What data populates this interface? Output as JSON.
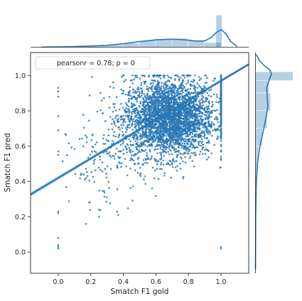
{
  "chart_data": {
    "type": "scatter",
    "xlabel": "Smatch F1 gold",
    "ylabel": "Smatch F1 pred",
    "xlim": [
      -0.17,
      1.17
    ],
    "ylim": [
      -0.12,
      1.13
    ],
    "xticks": [
      0.0,
      0.2,
      0.4,
      0.6,
      0.8,
      1.0
    ],
    "xtick_labels": [
      "0.0",
      "0.2",
      "0.4",
      "0.6",
      "0.8",
      "1.0"
    ],
    "yticks": [
      0.0,
      0.2,
      0.4,
      0.6,
      0.8,
      1.0
    ],
    "ytick_labels": [
      "0.0",
      "0.2",
      "0.4",
      "0.6",
      "0.8",
      "1.0"
    ],
    "legend": "pearsonr = 0.78; p = 0",
    "legend_position": "top-left",
    "color": "#2878b5",
    "regression": {
      "slope": 0.55,
      "intercept": 0.42
    },
    "scatter_clusters": [
      {
        "x_mean": 0.68,
        "y_mean": 0.76,
        "x_sd": 0.14,
        "y_sd": 0.11,
        "count": 3200
      },
      {
        "x_mean": 1.0,
        "y_mean": 0.86,
        "x_sd": 0.0,
        "y_sd": 0.07,
        "count": 260
      },
      {
        "x_mean": 0.3,
        "y_mean": 0.5,
        "x_sd": 0.12,
        "y_sd": 0.12,
        "count": 150
      }
    ],
    "outlier_points": [
      {
        "x": 0.0,
        "y": 0.93
      },
      {
        "x": 0.0,
        "y": 0.91
      },
      {
        "x": 0.0,
        "y": 0.88
      },
      {
        "x": 0.0,
        "y": 0.77
      },
      {
        "x": 0.0,
        "y": 0.69
      },
      {
        "x": 0.0,
        "y": 0.57
      },
      {
        "x": 0.0,
        "y": 0.55
      },
      {
        "x": 0.0,
        "y": 0.23
      },
      {
        "x": 0.0,
        "y": 0.22
      },
      {
        "x": 0.0,
        "y": 0.08
      },
      {
        "x": 0.0,
        "y": 0.04
      },
      {
        "x": 0.0,
        "y": 0.03
      },
      {
        "x": 0.0,
        "y": 0.02
      },
      {
        "x": 0.17,
        "y": 0.16
      },
      {
        "x": 0.25,
        "y": 0.24
      },
      {
        "x": 0.25,
        "y": 0.2
      },
      {
        "x": 1.0,
        "y": 0.03
      },
      {
        "x": 1.0,
        "y": 0.02
      },
      {
        "x": 1.0,
        "y": 0.7
      },
      {
        "x": 1.0,
        "y": 0.66
      },
      {
        "x": 1.0,
        "y": 0.6
      },
      {
        "x": 1.0,
        "y": 0.57
      },
      {
        "x": 1.0,
        "y": 0.53
      },
      {
        "x": 1.0,
        "y": 0.99
      }
    ],
    "x_marginal": {
      "bins": [
        -0.1,
        0.0,
        0.1,
        0.2,
        0.3,
        0.4,
        0.5,
        0.6,
        0.7,
        0.8,
        0.9,
        1.0
      ],
      "hist_heights": [
        0.02,
        0.05,
        0.06,
        0.1,
        0.16,
        0.3,
        0.5,
        0.65,
        0.68,
        0.55,
        0.35,
        2.5
      ],
      "kde_x": [
        -0.1,
        0.0,
        0.1,
        0.2,
        0.3,
        0.4,
        0.5,
        0.6,
        0.65,
        0.7,
        0.75,
        0.8,
        0.85,
        0.9,
        0.94,
        0.97,
        1.0,
        1.03,
        1.06,
        1.1
      ],
      "kde_y": [
        0.01,
        0.03,
        0.06,
        0.1,
        0.16,
        0.28,
        0.46,
        0.6,
        0.64,
        0.66,
        0.63,
        0.58,
        0.5,
        0.52,
        0.8,
        1.2,
        1.45,
        1.1,
        0.45,
        0.05
      ]
    },
    "y_marginal": {
      "bins": [
        0.0,
        0.1,
        0.2,
        0.3,
        0.4,
        0.5,
        0.6,
        0.7,
        0.8,
        0.9,
        0.97,
        1.02
      ],
      "hist_widths": [
        0.02,
        0.02,
        0.03,
        0.06,
        0.1,
        0.2,
        0.45,
        0.75,
        1.0,
        0.9,
        2.5
      ],
      "kde_y": [
        -0.1,
        0.0,
        0.2,
        0.4,
        0.5,
        0.6,
        0.7,
        0.78,
        0.83,
        0.88,
        0.93,
        0.98,
        1.01,
        1.03,
        1.05,
        1.08,
        1.12
      ],
      "kde_x": [
        0.0,
        0.01,
        0.02,
        0.08,
        0.18,
        0.4,
        0.75,
        1.0,
        1.1,
        1.05,
        1.0,
        1.25,
        1.45,
        1.3,
        0.9,
        0.4,
        0.05
      ]
    }
  }
}
